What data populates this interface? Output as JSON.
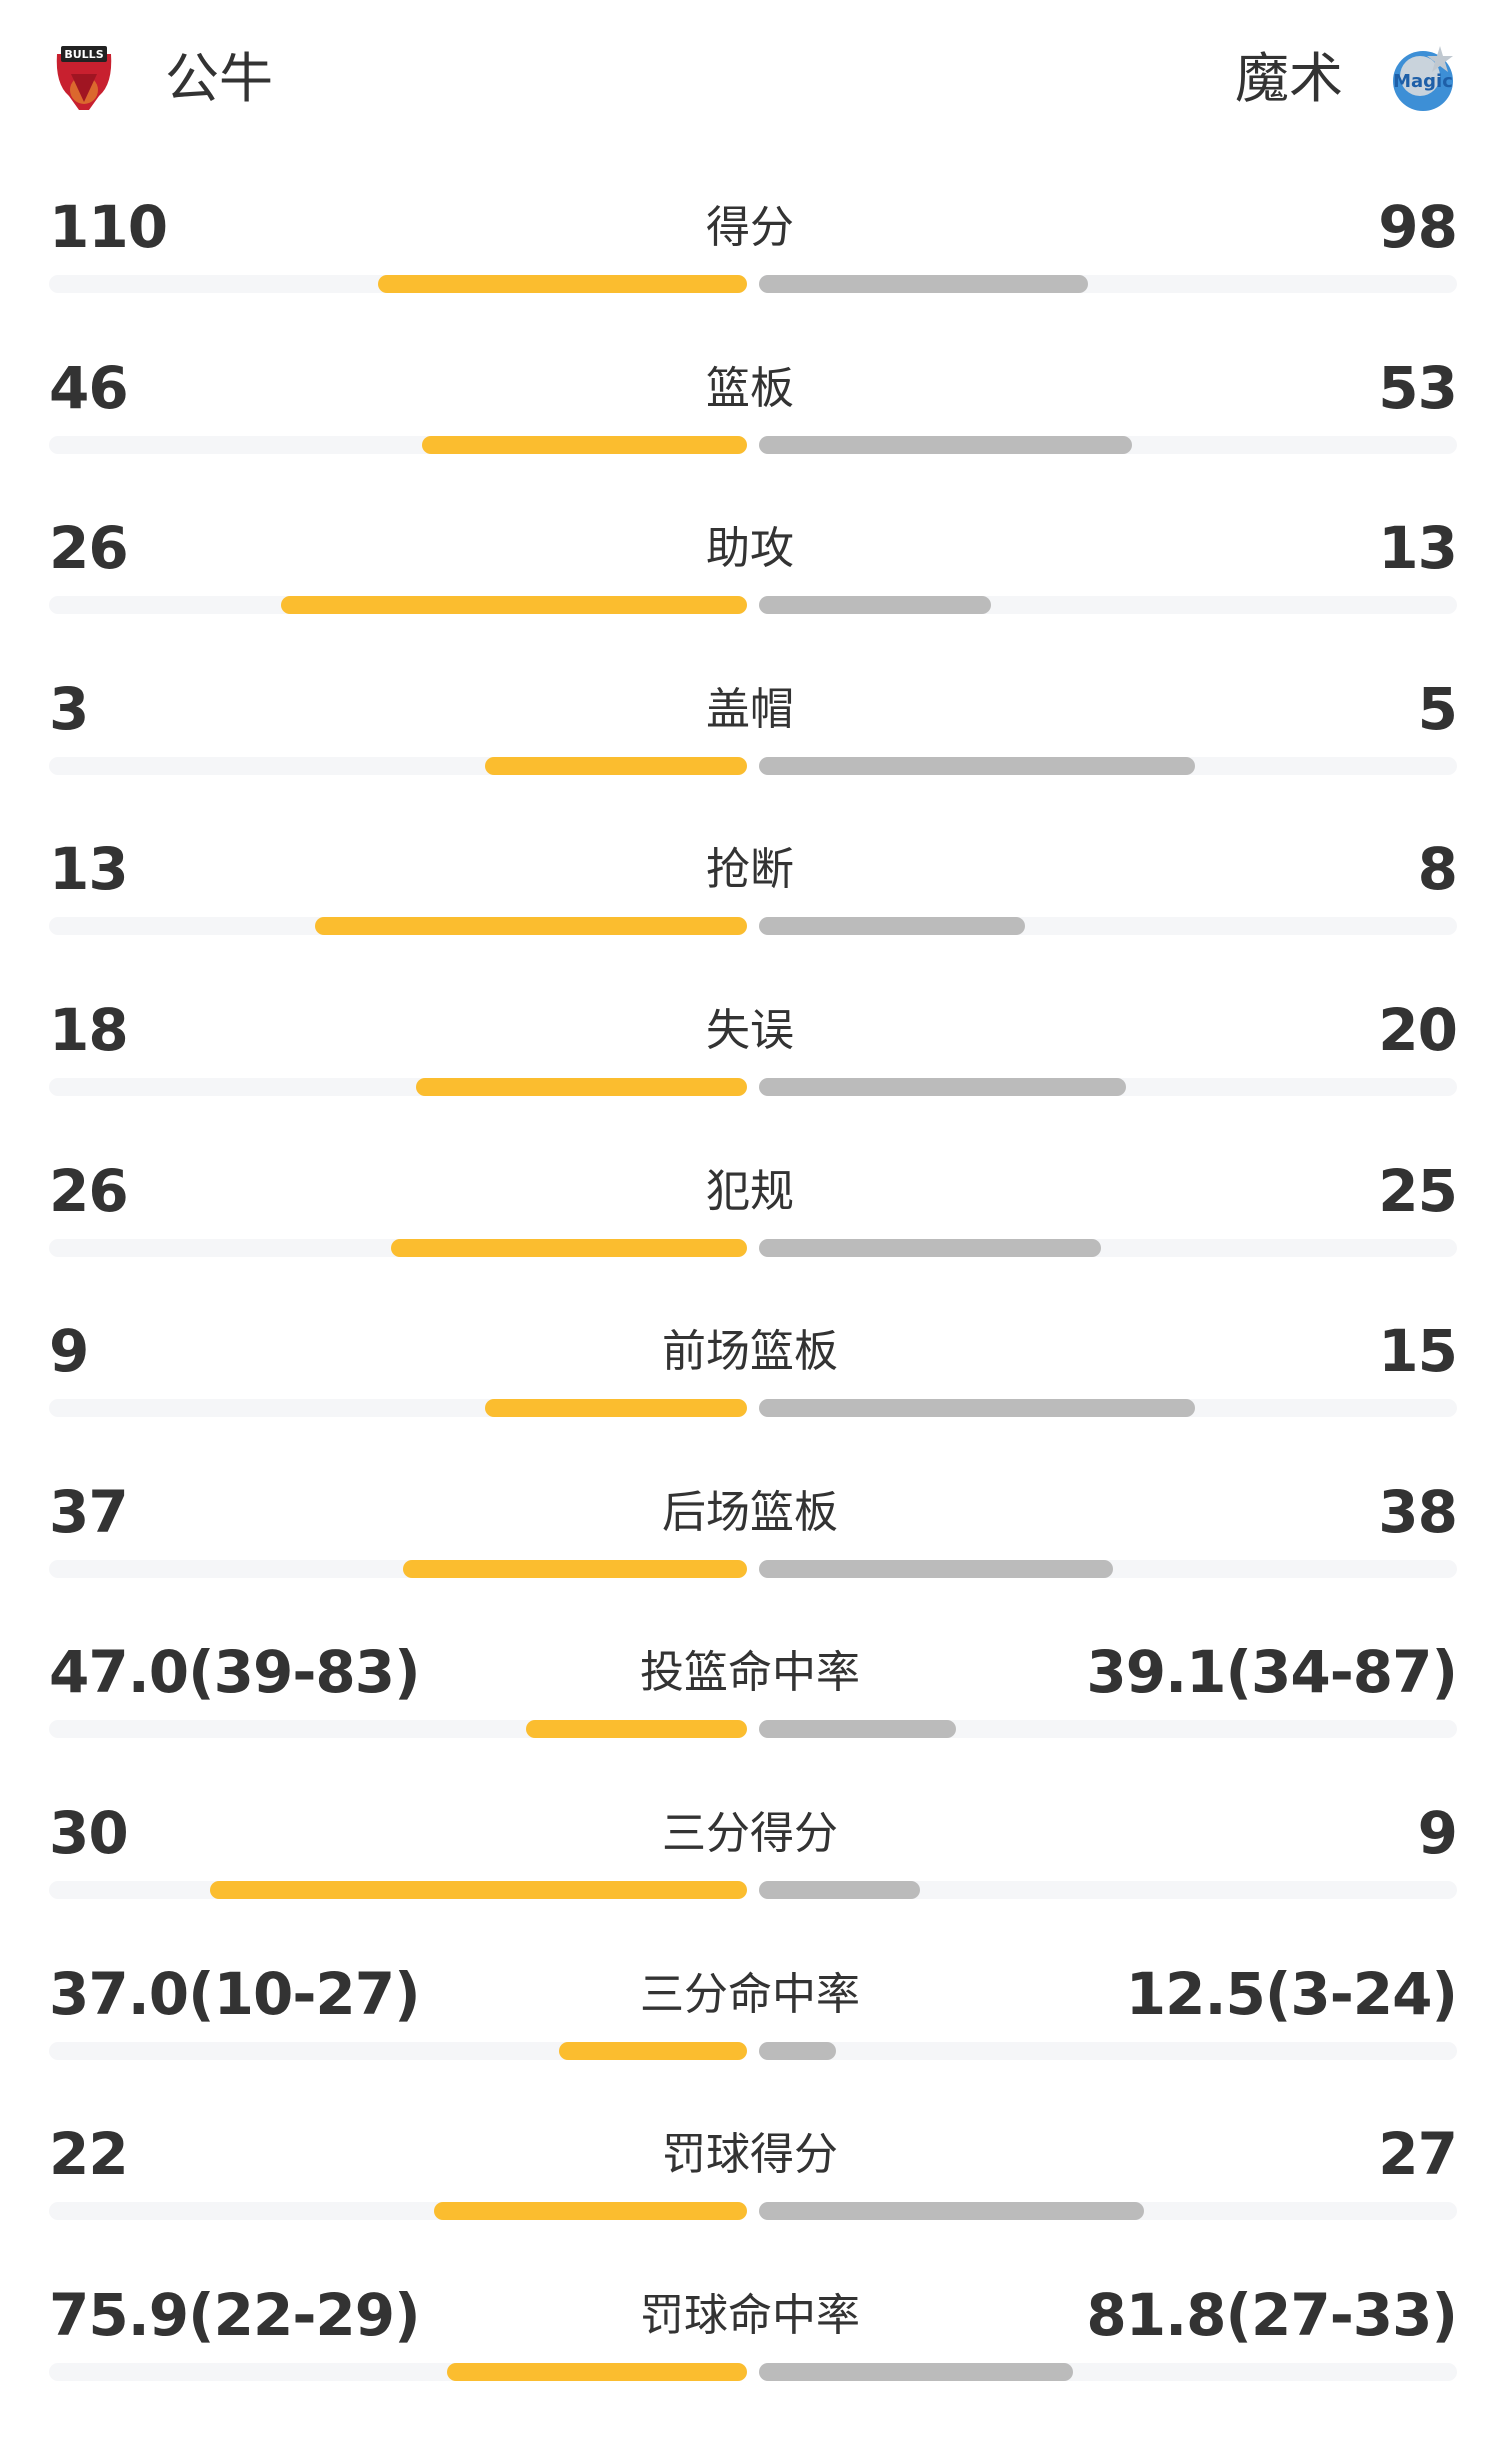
{
  "home": {
    "name": "公牛",
    "logo": "bulls-logo",
    "logo_text": "BULLS"
  },
  "away": {
    "name": "魔术",
    "logo": "magic-logo",
    "logo_text": "Magic"
  },
  "colors": {
    "home_bar": "#fbbd2f",
    "away_bar": "#bbbbbb",
    "track": "#f5f6f8",
    "text": "#333333"
  },
  "stats": [
    {
      "label": "得分",
      "home": "110",
      "away": "98",
      "home_fill": 0.529,
      "away_fill": 0.471
    },
    {
      "label": "篮板",
      "home": "46",
      "away": "53",
      "home_fill": 0.465,
      "away_fill": 0.535
    },
    {
      "label": "助攻",
      "home": "26",
      "away": "13",
      "home_fill": 0.667,
      "away_fill": 0.333
    },
    {
      "label": "盖帽",
      "home": "3",
      "away": "5",
      "home_fill": 0.375,
      "away_fill": 0.625
    },
    {
      "label": "抢断",
      "home": "13",
      "away": "8",
      "home_fill": 0.619,
      "away_fill": 0.381
    },
    {
      "label": "失误",
      "home": "18",
      "away": "20",
      "home_fill": 0.474,
      "away_fill": 0.526
    },
    {
      "label": "犯规",
      "home": "26",
      "away": "25",
      "home_fill": 0.51,
      "away_fill": 0.49
    },
    {
      "label": "前场篮板",
      "home": "9",
      "away": "15",
      "home_fill": 0.375,
      "away_fill": 0.625
    },
    {
      "label": "后场篮板",
      "home": "37",
      "away": "38",
      "home_fill": 0.493,
      "away_fill": 0.507
    },
    {
      "label": "投篮命中率",
      "home": "47.0(39-83)",
      "away": "39.1(34-87)",
      "home_fill": 0.317,
      "away_fill": 0.282
    },
    {
      "label": "三分得分",
      "home": "30",
      "away": "9",
      "home_fill": 0.769,
      "away_fill": 0.231
    },
    {
      "label": "三分命中率",
      "home": "37.0(10-27)",
      "away": "12.5(3-24)",
      "home_fill": 0.269,
      "away_fill": 0.11
    },
    {
      "label": "罚球得分",
      "home": "22",
      "away": "27",
      "home_fill": 0.449,
      "away_fill": 0.551
    },
    {
      "label": "罚球命中率",
      "home": "75.9(22-29)",
      "away": "81.8(27-33)",
      "home_fill": 0.43,
      "away_fill": 0.45
    }
  ]
}
